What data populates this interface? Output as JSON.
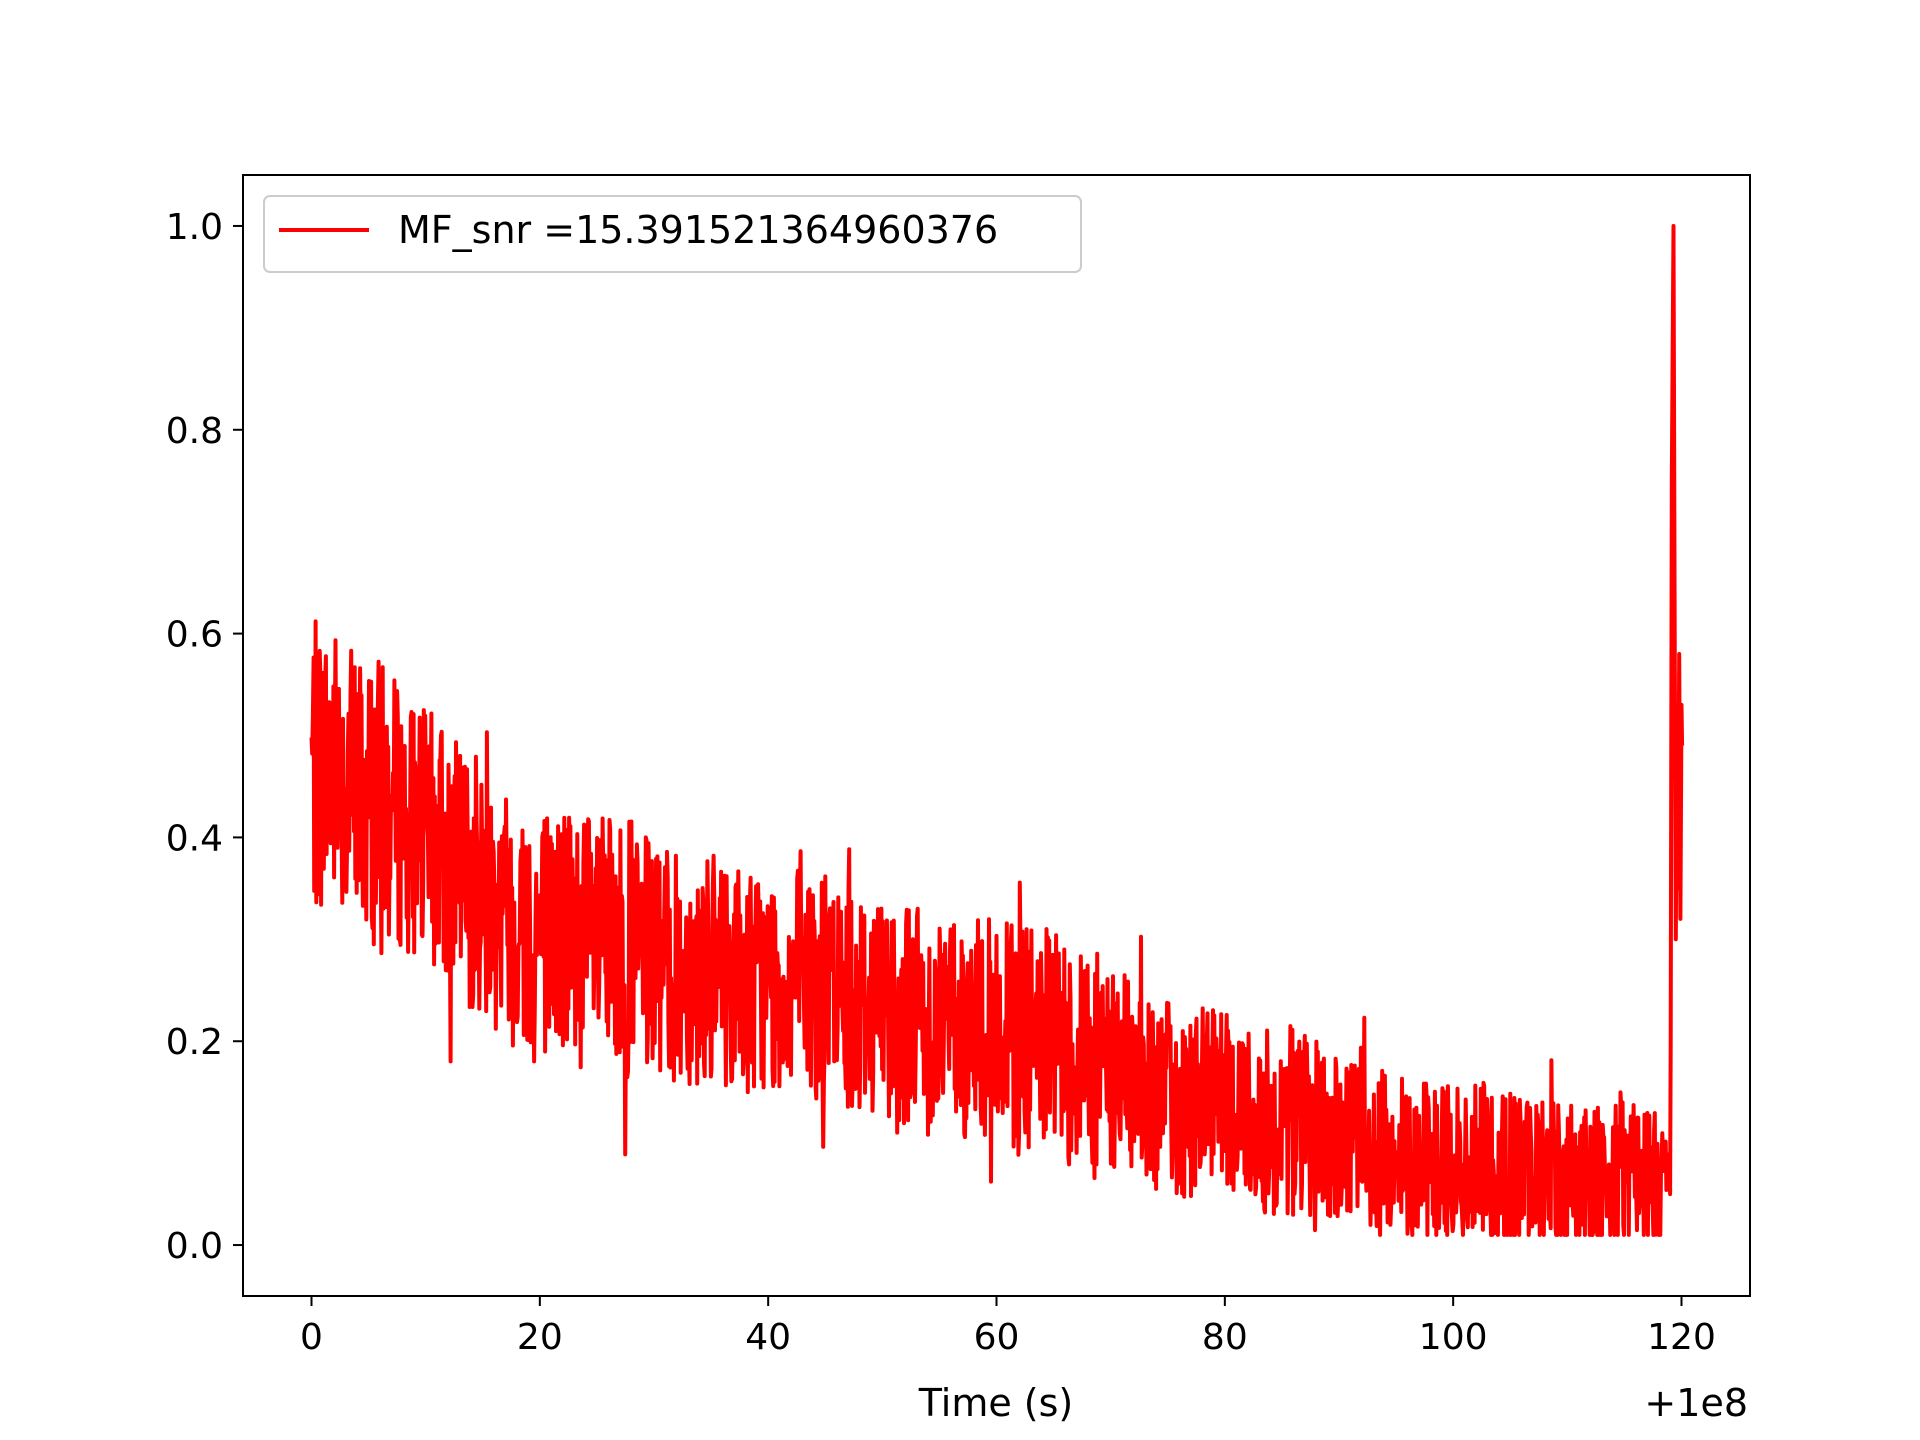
{
  "chart_data": {
    "type": "line",
    "title": "",
    "xlabel": "Time (s)",
    "ylabel": "",
    "x_offset_label": "+1e8",
    "xlim": [
      -6,
      126
    ],
    "ylim": [
      -0.05,
      1.05
    ],
    "xticks": [
      0,
      20,
      40,
      60,
      80,
      100,
      120
    ],
    "xtick_labels": [
      "0",
      "20",
      "40",
      "60",
      "80",
      "100",
      "120"
    ],
    "yticks": [
      0.0,
      0.2,
      0.4,
      0.6,
      0.8,
      1.0
    ],
    "ytick_labels": [
      "0.0",
      "0.2",
      "0.4",
      "0.6",
      "0.8",
      "1.0"
    ],
    "grid": false,
    "legend_position": "top-left",
    "series": [
      {
        "name": "MF_snr =15.391521364960376",
        "color": "#ff0000",
        "x": [
          0,
          2,
          4,
          6,
          8,
          10,
          12,
          14,
          16,
          18,
          20,
          22,
          24,
          26,
          28,
          30,
          32,
          34,
          36,
          38,
          40,
          42,
          44,
          46,
          48,
          50,
          52,
          54,
          56,
          58,
          60,
          62,
          64,
          66,
          68,
          70,
          72,
          74,
          76,
          78,
          80,
          82,
          84,
          86,
          88,
          90,
          92,
          94,
          96,
          98,
          100,
          102,
          104,
          106,
          108,
          110,
          112,
          114,
          116,
          118,
          119,
          119.3,
          119.6,
          120
        ],
        "mean": [
          0.47,
          0.47,
          0.45,
          0.43,
          0.42,
          0.4,
          0.38,
          0.36,
          0.34,
          0.32,
          0.31,
          0.31,
          0.3,
          0.29,
          0.29,
          0.28,
          0.27,
          0.27,
          0.27,
          0.26,
          0.26,
          0.26,
          0.25,
          0.25,
          0.24,
          0.24,
          0.23,
          0.22,
          0.22,
          0.21,
          0.21,
          0.2,
          0.2,
          0.19,
          0.18,
          0.17,
          0.16,
          0.15,
          0.14,
          0.14,
          0.13,
          0.13,
          0.12,
          0.12,
          0.11,
          0.1,
          0.1,
          0.09,
          0.09,
          0.08,
          0.08,
          0.08,
          0.08,
          0.07,
          0.07,
          0.07,
          0.07,
          0.07,
          0.07,
          0.07,
          0.08,
          1.0,
          0.4,
          0.55
        ],
        "spread": [
          0.09,
          0.09,
          0.09,
          0.09,
          0.08,
          0.08,
          0.08,
          0.08,
          0.08,
          0.08,
          0.08,
          0.08,
          0.08,
          0.08,
          0.08,
          0.07,
          0.07,
          0.07,
          0.07,
          0.07,
          0.07,
          0.07,
          0.07,
          0.07,
          0.07,
          0.07,
          0.07,
          0.07,
          0.07,
          0.07,
          0.07,
          0.07,
          0.07,
          0.07,
          0.07,
          0.07,
          0.06,
          0.06,
          0.06,
          0.06,
          0.06,
          0.06,
          0.06,
          0.06,
          0.06,
          0.05,
          0.05,
          0.05,
          0.05,
          0.05,
          0.05,
          0.05,
          0.05,
          0.05,
          0.05,
          0.05,
          0.05,
          0.05,
          0.05,
          0.05,
          0.0,
          0.0,
          0.08,
          0.05
        ],
        "y_min": 0.01,
        "y_max": 1.0,
        "peak_x": 119.3,
        "peak_y": 1.0
      }
    ]
  }
}
